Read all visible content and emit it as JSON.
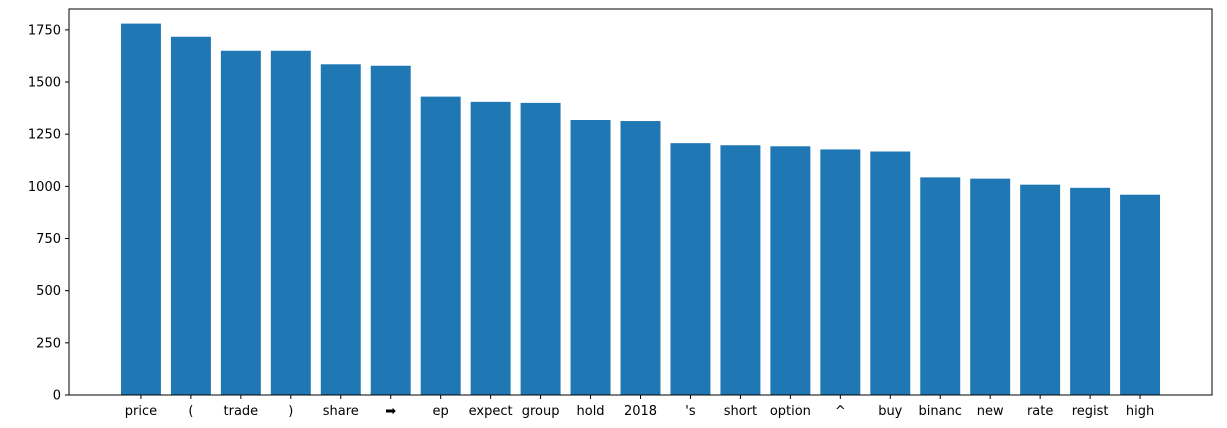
{
  "chart_data": {
    "type": "bar",
    "categories": [
      "price",
      "(",
      "trade",
      ")",
      "share",
      "➡",
      "ep",
      "expect",
      "group",
      "hold",
      "2018",
      "'s",
      "short",
      "option",
      "^",
      "buy",
      "binanc",
      "new",
      "rate",
      "regist",
      "high"
    ],
    "values": [
      1780,
      1717,
      1650,
      1650,
      1585,
      1578,
      1430,
      1405,
      1400,
      1318,
      1313,
      1207,
      1197,
      1192,
      1177,
      1167,
      1043,
      1037,
      1008,
      993,
      960
    ],
    "ylim": [
      0,
      1850
    ],
    "yticks": [
      0,
      250,
      500,
      750,
      1000,
      1250,
      1500,
      1750
    ],
    "ytick_labels": [
      "0",
      "250",
      "500",
      "750",
      "1000",
      "1250",
      "1500",
      "1750"
    ],
    "bar_color": "#1f77b4",
    "title": "",
    "xlabel": "",
    "ylabel": "",
    "grid": false
  }
}
